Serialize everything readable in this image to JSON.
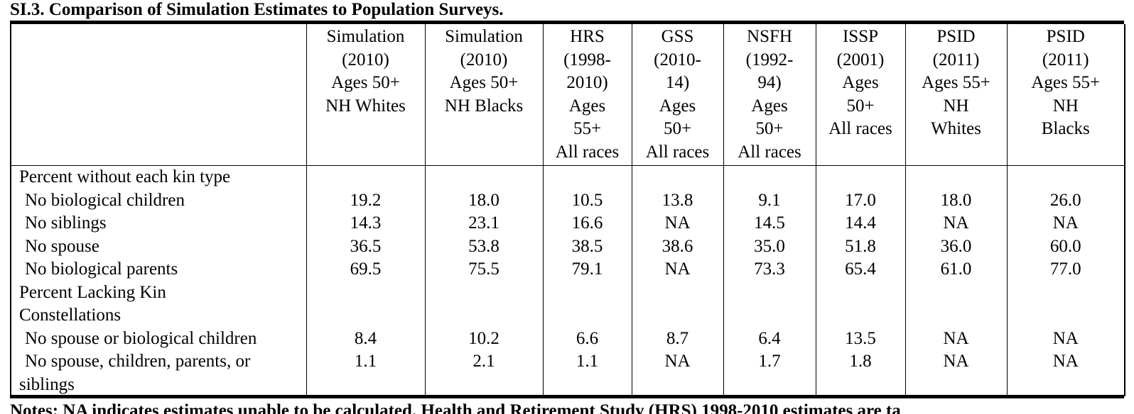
{
  "title": "SI.3. Comparison of Simulation Estimates to Population Surveys.",
  "columns": [
    {
      "lines": [
        "Simulation",
        "(2010)",
        "Ages 50+",
        "NH Whites"
      ]
    },
    {
      "lines": [
        "Simulation",
        "(2010)",
        "Ages 50+",
        "NH Blacks"
      ]
    },
    {
      "lines": [
        "HRS",
        "(1998-",
        "2010)",
        "Ages",
        "55+",
        "All races"
      ]
    },
    {
      "lines": [
        "GSS",
        "(2010-",
        "14)",
        "Ages",
        "50+",
        "All races"
      ]
    },
    {
      "lines": [
        "NSFH",
        "(1992-",
        "94)",
        "Ages",
        "50+",
        "All races"
      ]
    },
    {
      "lines": [
        "ISSP",
        "(2001)",
        "Ages",
        "50+",
        "All races"
      ]
    },
    {
      "lines": [
        "PSID",
        "(2011)",
        "Ages 55+",
        "NH",
        "Whites"
      ]
    },
    {
      "lines": [
        "PSID",
        "(2011)",
        "Ages 55+",
        "NH",
        "Blacks"
      ]
    }
  ],
  "sections": [
    {
      "label": "Percent without each kin type",
      "rows": [
        {
          "label": "No biological children",
          "values": [
            "19.2",
            "18.0",
            "10.5",
            "13.8",
            "9.1",
            "17.0",
            "18.0",
            "26.0"
          ]
        },
        {
          "label": "No siblings",
          "values": [
            "14.3",
            "23.1",
            "16.6",
            "NA",
            "14.5",
            "14.4",
            "NA",
            "NA"
          ]
        },
        {
          "label": "No spouse",
          "values": [
            "36.5",
            "53.8",
            "38.5",
            "38.6",
            "35.0",
            "51.8",
            "36.0",
            "60.0"
          ]
        },
        {
          "label": "No biological parents",
          "values": [
            "69.5",
            "75.5",
            "79.1",
            "NA",
            "73.3",
            "65.4",
            "61.0",
            "77.0"
          ]
        }
      ]
    },
    {
      "label_lines": [
        "Percent Lacking Kin",
        "Constellations"
      ],
      "rows": [
        {
          "label": "No spouse or biological children",
          "values": [
            "8.4",
            "10.2",
            "6.6",
            "8.7",
            "6.4",
            "13.5",
            "NA",
            "NA"
          ]
        },
        {
          "label_lines": [
            "No spouse, children, parents, or",
            "siblings"
          ],
          "values": [
            "1.1",
            "2.1",
            "1.1",
            "NA",
            "1.7",
            "1.8",
            "NA",
            "NA"
          ]
        }
      ]
    }
  ],
  "notes_text": "Notes: NA indicates estimates unable to be calculated. Health and Retirement Study (HRS) 1998-2010 estimates are ta"
}
